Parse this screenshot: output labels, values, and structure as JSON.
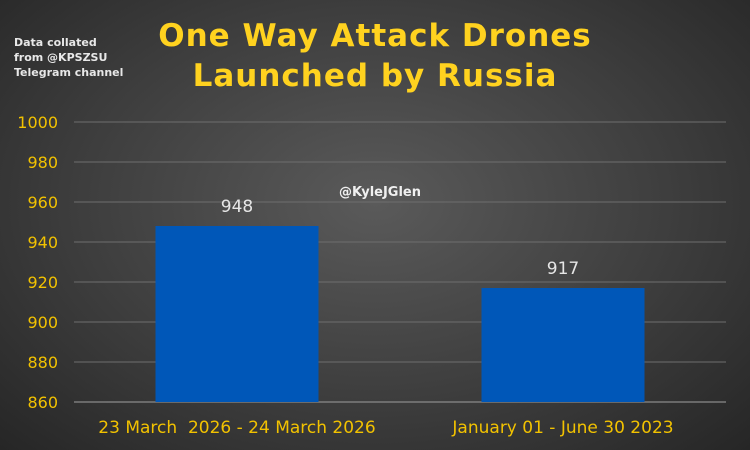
{
  "note": "Data collated\nfrom @KPSZSU\nTelegram channel",
  "watermark": "@KyleJGlen",
  "colors": {
    "bar": "#0057b8",
    "title": "#ffd21f",
    "axis_text": "#f2c200",
    "grid": "#6e6e6e"
  },
  "chart_data": {
    "type": "bar",
    "title": "One Way Attack Drones Launched by Russia",
    "title_lines": [
      "One Way Attack Drones",
      "Launched by Russia"
    ],
    "categories": [
      "23 March  2026 - 24 March 2026",
      "January 01 - June 30 2023"
    ],
    "values": [
      948,
      917
    ],
    "data_labels": [
      "948",
      "917"
    ],
    "ylim": [
      860,
      1000
    ],
    "yticks": [
      860,
      880,
      900,
      920,
      940,
      960,
      980,
      1000
    ],
    "xlabel": "",
    "ylabel": "",
    "grid": true,
    "legend": "none"
  }
}
